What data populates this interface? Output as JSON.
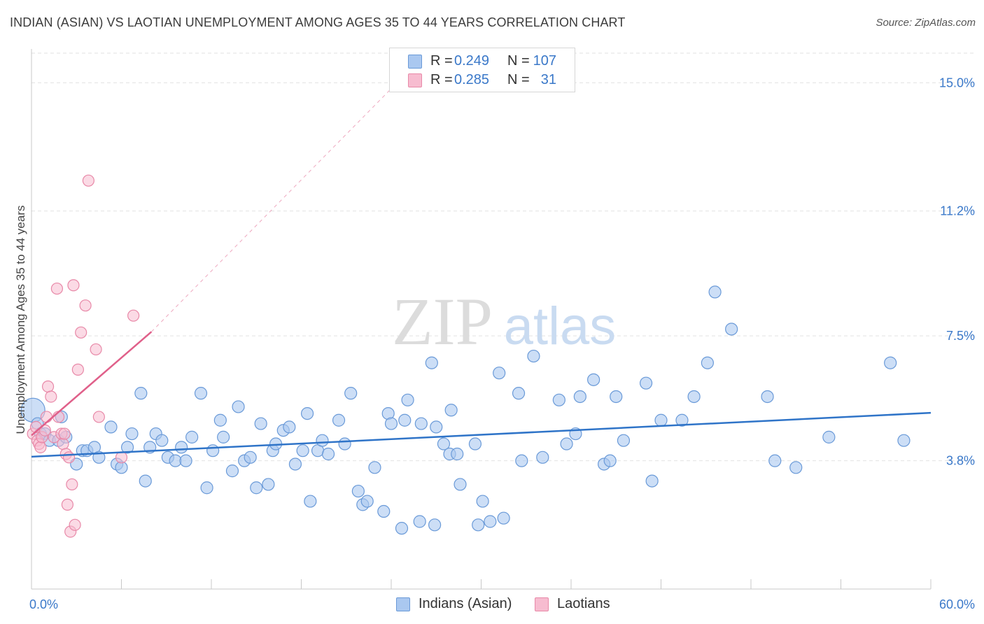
{
  "header": {
    "title": "INDIAN (ASIAN) VS LAOTIAN UNEMPLOYMENT AMONG AGES 35 TO 44 YEARS CORRELATION CHART",
    "source": "Source: ZipAtlas.com"
  },
  "watermark": {
    "zip": "ZIP",
    "atlas": "atlas"
  },
  "legend": {
    "rows": [
      {
        "r_label": "R =",
        "r_value": "0.249",
        "n_label": "N =",
        "n_value": "107"
      },
      {
        "r_label": "R =",
        "r_value": "0.285",
        "n_label": "N =",
        "n_value": "31"
      }
    ]
  },
  "bottom_legend": {
    "series1": "Indians (Asian)",
    "series2": "Laotians"
  },
  "colors": {
    "blue_fill": "#aac8f0",
    "blue_stroke": "#6a9ad8",
    "blue_line": "#2f74c8",
    "pink_fill": "#f7bcd0",
    "pink_stroke": "#e889a8",
    "pink_line": "#e0608a",
    "tick_label": "#3a78c9",
    "grid": "#e2e2e2"
  },
  "chart_data": {
    "type": "scatter",
    "title": "INDIAN (ASIAN) VS LAOTIAN UNEMPLOYMENT AMONG AGES 35 TO 44 YEARS CORRELATION CHART",
    "xlabel": "",
    "ylabel": "Unemployment Among Ages 35 to 44 years",
    "xlim": [
      0,
      60
    ],
    "ylim": [
      0,
      16.0
    ],
    "x_tick_labels": [
      {
        "value": 0,
        "label": "0.0%"
      },
      {
        "value": 60,
        "label": "60.0%"
      }
    ],
    "y_tick_labels": [
      {
        "value": 3.8,
        "label": "3.8%"
      },
      {
        "value": 7.5,
        "label": "7.5%"
      },
      {
        "value": 11.2,
        "label": "11.2%"
      },
      {
        "value": 15.0,
        "label": "15.0%"
      }
    ],
    "series": [
      {
        "name": "Indians (Asian)",
        "r": 0.249,
        "n": 107,
        "trend": {
          "x": [
            0,
            60
          ],
          "y": [
            3.92,
            5.22
          ],
          "dashed_extension": false
        },
        "points": [
          [
            0.1,
            5.3
          ],
          [
            0.4,
            4.9
          ],
          [
            0.6,
            4.6
          ],
          [
            0.9,
            4.6
          ],
          [
            1.2,
            4.4
          ],
          [
            1.8,
            4.4
          ],
          [
            2.0,
            5.1
          ],
          [
            2.3,
            4.5
          ],
          [
            3.0,
            3.7
          ],
          [
            3.4,
            4.1
          ],
          [
            3.7,
            4.1
          ],
          [
            4.2,
            4.2
          ],
          [
            4.5,
            3.9
          ],
          [
            5.3,
            4.8
          ],
          [
            5.7,
            3.7
          ],
          [
            6.0,
            3.6
          ],
          [
            6.4,
            4.2
          ],
          [
            6.7,
            4.6
          ],
          [
            7.3,
            5.8
          ],
          [
            7.6,
            3.2
          ],
          [
            7.9,
            4.2
          ],
          [
            8.3,
            4.6
          ],
          [
            8.7,
            4.4
          ],
          [
            9.1,
            3.9
          ],
          [
            9.6,
            3.8
          ],
          [
            10.0,
            4.2
          ],
          [
            10.3,
            3.8
          ],
          [
            10.7,
            4.5
          ],
          [
            11.3,
            5.8
          ],
          [
            11.7,
            3.0
          ],
          [
            12.1,
            4.1
          ],
          [
            12.6,
            5.0
          ],
          [
            12.8,
            4.5
          ],
          [
            13.4,
            3.5
          ],
          [
            13.8,
            5.4
          ],
          [
            14.2,
            3.8
          ],
          [
            14.6,
            3.9
          ],
          [
            15.0,
            3.0
          ],
          [
            15.3,
            4.9
          ],
          [
            15.8,
            3.1
          ],
          [
            16.1,
            4.1
          ],
          [
            16.3,
            4.3
          ],
          [
            16.8,
            4.7
          ],
          [
            17.2,
            4.8
          ],
          [
            17.6,
            3.7
          ],
          [
            18.1,
            4.1
          ],
          [
            18.4,
            5.2
          ],
          [
            18.6,
            2.6
          ],
          [
            19.1,
            4.1
          ],
          [
            19.4,
            4.4
          ],
          [
            19.8,
            4.0
          ],
          [
            20.5,
            5.0
          ],
          [
            20.9,
            4.3
          ],
          [
            21.3,
            5.8
          ],
          [
            21.8,
            2.9
          ],
          [
            22.1,
            2.5
          ],
          [
            22.4,
            2.6
          ],
          [
            22.9,
            3.6
          ],
          [
            23.5,
            2.3
          ],
          [
            23.8,
            5.2
          ],
          [
            24.0,
            4.9
          ],
          [
            24.7,
            1.8
          ],
          [
            24.9,
            5.0
          ],
          [
            25.1,
            5.6
          ],
          [
            25.9,
            2.0
          ],
          [
            26.0,
            4.9
          ],
          [
            26.7,
            6.7
          ],
          [
            26.9,
            1.9
          ],
          [
            27.0,
            4.8
          ],
          [
            27.5,
            4.3
          ],
          [
            27.9,
            4.0
          ],
          [
            28.0,
            5.3
          ],
          [
            28.4,
            4.0
          ],
          [
            28.6,
            3.1
          ],
          [
            29.6,
            4.3
          ],
          [
            29.8,
            1.9
          ],
          [
            30.1,
            2.6
          ],
          [
            30.6,
            2.0
          ],
          [
            31.2,
            6.4
          ],
          [
            31.5,
            2.1
          ],
          [
            32.5,
            5.8
          ],
          [
            32.7,
            3.8
          ],
          [
            33.5,
            6.9
          ],
          [
            34.1,
            3.9
          ],
          [
            35.2,
            5.6
          ],
          [
            35.7,
            4.3
          ],
          [
            36.3,
            4.6
          ],
          [
            36.6,
            5.7
          ],
          [
            37.5,
            6.2
          ],
          [
            38.2,
            3.7
          ],
          [
            38.6,
            3.8
          ],
          [
            39.0,
            5.7
          ],
          [
            39.5,
            4.4
          ],
          [
            41.0,
            6.1
          ],
          [
            41.4,
            3.2
          ],
          [
            42.0,
            5.0
          ],
          [
            43.4,
            5.0
          ],
          [
            44.2,
            5.7
          ],
          [
            45.1,
            6.7
          ],
          [
            45.6,
            8.8
          ],
          [
            46.7,
            7.7
          ],
          [
            49.1,
            5.7
          ],
          [
            49.6,
            3.8
          ],
          [
            51.0,
            3.6
          ],
          [
            53.2,
            4.5
          ],
          [
            57.3,
            6.7
          ],
          [
            58.2,
            4.4
          ]
        ]
      },
      {
        "name": "Laotians",
        "r": 0.285,
        "n": 31,
        "trend": {
          "x": [
            0,
            8
          ],
          "y": [
            4.55,
            7.62
          ],
          "dashed_to": {
            "x": 25.5,
            "y": 15.5
          }
        },
        "points": [
          [
            0.1,
            4.6
          ],
          [
            0.3,
            4.8
          ],
          [
            0.4,
            4.4
          ],
          [
            0.5,
            4.3
          ],
          [
            0.6,
            4.2
          ],
          [
            0.7,
            4.5
          ],
          [
            0.9,
            4.7
          ],
          [
            1.0,
            5.1
          ],
          [
            1.1,
            6.0
          ],
          [
            1.3,
            5.7
          ],
          [
            1.5,
            4.5
          ],
          [
            1.7,
            8.9
          ],
          [
            1.8,
            5.1
          ],
          [
            2.0,
            4.6
          ],
          [
            2.1,
            4.3
          ],
          [
            2.2,
            4.6
          ],
          [
            2.3,
            4.0
          ],
          [
            2.4,
            2.5
          ],
          [
            2.5,
            3.9
          ],
          [
            2.6,
            1.7
          ],
          [
            2.7,
            3.1
          ],
          [
            2.8,
            9.0
          ],
          [
            2.9,
            1.9
          ],
          [
            3.1,
            6.5
          ],
          [
            3.3,
            7.6
          ],
          [
            3.6,
            8.4
          ],
          [
            3.8,
            12.1
          ],
          [
            4.3,
            7.1
          ],
          [
            4.5,
            5.1
          ],
          [
            6.0,
            3.9
          ],
          [
            6.8,
            8.1
          ]
        ]
      }
    ]
  }
}
